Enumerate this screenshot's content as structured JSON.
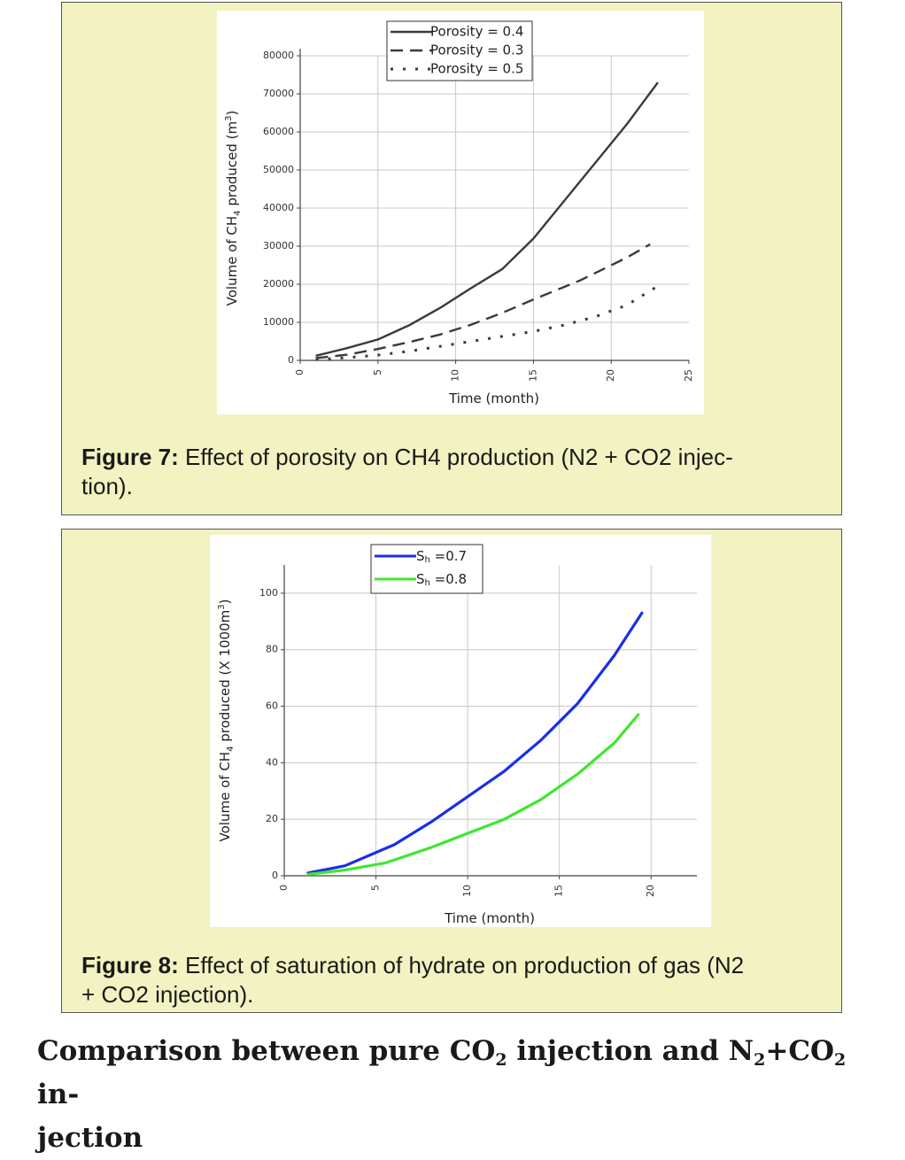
{
  "figure7": {
    "caption_label": "Figure 7:",
    "caption_text": "Effect of porosity on CH4 production (N2 + CO2 injec-tion).",
    "caption_line1": " Effect of porosity on CH4 production (N2 + CO2 injec-",
    "caption_line2": "tion)."
  },
  "figure8": {
    "caption_label": "Figure 8:",
    "caption_line1": " Effect of saturation of hydrate on production of gas (N2",
    "caption_line2": "+ CO2 injection)."
  },
  "section": {
    "heading_part1": "Comparison between pure CO",
    "sub1": "2",
    "heading_part2": " injection and N",
    "sub2": "2",
    "heading_part3": "+CO",
    "sub3": "2",
    "heading_part4": " in-",
    "heading_line2": "jection"
  },
  "colors": {
    "panel_background": "#f2f2c2",
    "fig7_line": "#3a3a3a",
    "sh07": "#1a2fe8",
    "sh08": "#3ee82c"
  },
  "chart_data": [
    {
      "type": "line",
      "title": "",
      "xlabel": "Time (month)",
      "ylabel_main": "Volume of CH",
      "ylabel_sub": "4",
      "ylabel_tail": " produced (m",
      "ylabel_sup": "3",
      "ylabel_end": ")",
      "xlim": [
        0,
        25
      ],
      "ylim": [
        0,
        80000
      ],
      "xticks": [
        "0",
        "5",
        "10",
        "15",
        "20",
        "25"
      ],
      "yticks": [
        "0",
        "10000",
        "20000",
        "30000",
        "40000",
        "50000",
        "60000",
        "70000",
        "80000"
      ],
      "grid": true,
      "legend_position": "top",
      "series": [
        {
          "name": "Porosity = 0.4",
          "style": "solid",
          "x": [
            1,
            3,
            5,
            7,
            9,
            11,
            13,
            15,
            18,
            21,
            23
          ],
          "y": [
            1200,
            3200,
            5500,
            9200,
            13800,
            19000,
            24000,
            32000,
            47000,
            62000,
            73000
          ]
        },
        {
          "name": "Porosity = 0.3",
          "style": "dash",
          "x": [
            1,
            3,
            5,
            7,
            9,
            11,
            13,
            15,
            18,
            21,
            22.5
          ],
          "y": [
            600,
            1500,
            3000,
            4800,
            6800,
            9400,
            12500,
            16000,
            21000,
            27000,
            30500
          ]
        },
        {
          "name": "Porosity = 0.5",
          "style": "dot",
          "x": [
            1,
            3,
            5,
            7,
            9,
            11,
            13,
            15,
            17,
            19,
            21,
            23
          ],
          "y": [
            200,
            700,
            1400,
            2400,
            3700,
            5000,
            6300,
            7600,
            9300,
            11500,
            14500,
            19500
          ]
        }
      ]
    },
    {
      "type": "line",
      "title": "",
      "xlabel": "Time (month)",
      "ylabel_main": "Volume of CH",
      "ylabel_sub": "4",
      "ylabel_tail": " produced (X 1000m",
      "ylabel_sup": "3",
      "ylabel_end": ")",
      "xlim": [
        0,
        22.5
      ],
      "ylim": [
        0,
        110
      ],
      "xticks": [
        "0",
        "5",
        "10",
        "15",
        "20"
      ],
      "yticks": [
        "0",
        "20",
        "40",
        "60",
        "80",
        "100"
      ],
      "grid": true,
      "legend_position": "top",
      "series": [
        {
          "name": "S",
          "sub": "h",
          "suffix": " =0.7",
          "color": "#1a2fe8",
          "x": [
            1.3,
            3.3,
            6,
            8,
            10,
            12,
            14,
            16,
            18,
            19.5
          ],
          "y": [
            1,
            3.5,
            11,
            19,
            28,
            37,
            48,
            61,
            78,
            93
          ]
        },
        {
          "name": "S",
          "sub": "h",
          "suffix": " =0.8",
          "color": "#3ee82c",
          "x": [
            1.3,
            3.3,
            5.5,
            8,
            10,
            12,
            14,
            16,
            18,
            19.3
          ],
          "y": [
            0.5,
            2,
            4.5,
            10,
            15,
            20,
            27,
            36,
            47,
            57
          ]
        }
      ]
    }
  ]
}
